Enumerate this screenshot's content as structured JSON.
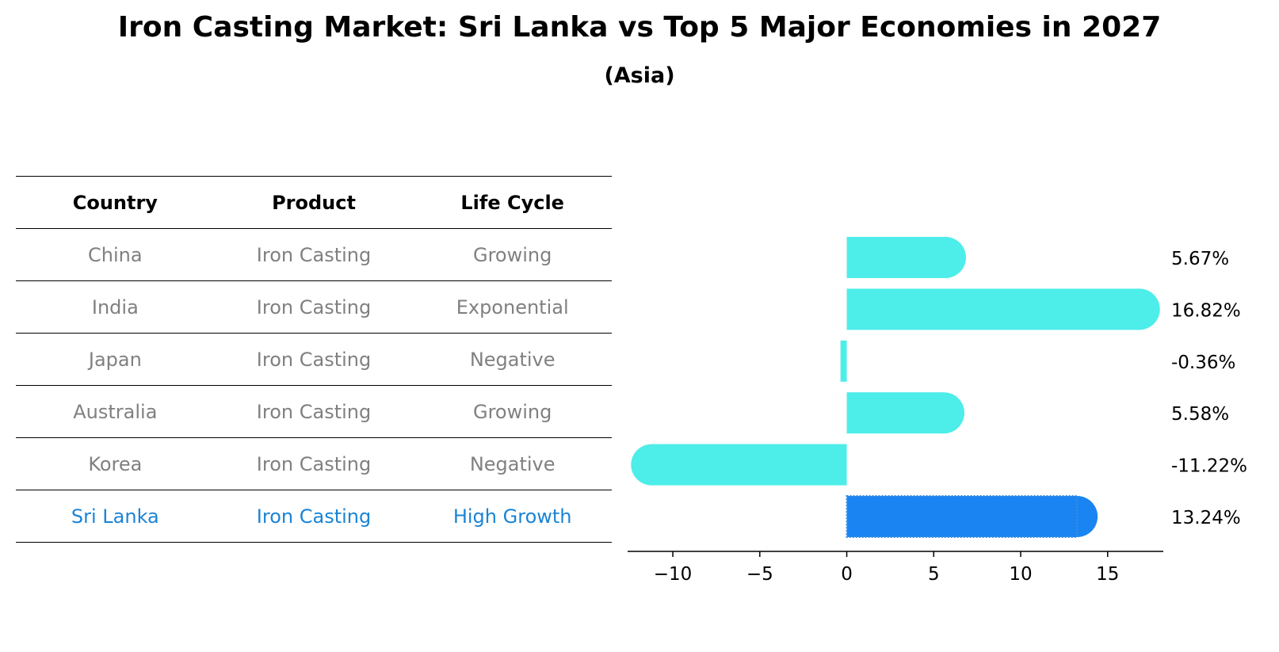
{
  "title": "Iron Casting Market: Sri Lanka vs Top 5 Major Economies in 2027",
  "subtitle": "(Asia)",
  "table": {
    "headers": [
      "Country",
      "Product",
      "Life Cycle"
    ],
    "rows": [
      [
        "China",
        "Iron Casting",
        "Growing"
      ],
      [
        "India",
        "Iron Casting",
        "Exponential"
      ],
      [
        "Japan",
        "Iron Casting",
        "Negative"
      ],
      [
        "Australia",
        "Iron Casting",
        "Growing"
      ],
      [
        "Korea",
        "Iron Casting",
        "Negative"
      ],
      [
        "Sri Lanka",
        "Iron Casting",
        "High Growth"
      ]
    ]
  },
  "colors": {
    "bar": "#4dede9",
    "highlight": "#1a84f2",
    "muted_text": "#808080",
    "highlight_text": "#1a84d6"
  },
  "chart_data": {
    "type": "bar",
    "orientation": "horizontal",
    "categories": [
      "China",
      "India",
      "Japan",
      "Australia",
      "Korea",
      "Sri Lanka"
    ],
    "values": [
      5.67,
      16.82,
      -0.36,
      5.58,
      -11.22,
      13.24
    ],
    "value_labels": [
      "5.67%",
      "16.82%",
      "-0.36%",
      "5.58%",
      "-11.22%",
      "13.24%"
    ],
    "highlight": "Sri Lanka",
    "xlim": [
      -12.6,
      18.2
    ],
    "xticks": [
      -10,
      -5,
      0,
      5,
      10,
      15
    ],
    "xtick_labels": [
      "−10",
      "−5",
      "0",
      "5",
      "10",
      "15"
    ],
    "xlabel": "",
    "ylabel": "",
    "grid": false
  }
}
